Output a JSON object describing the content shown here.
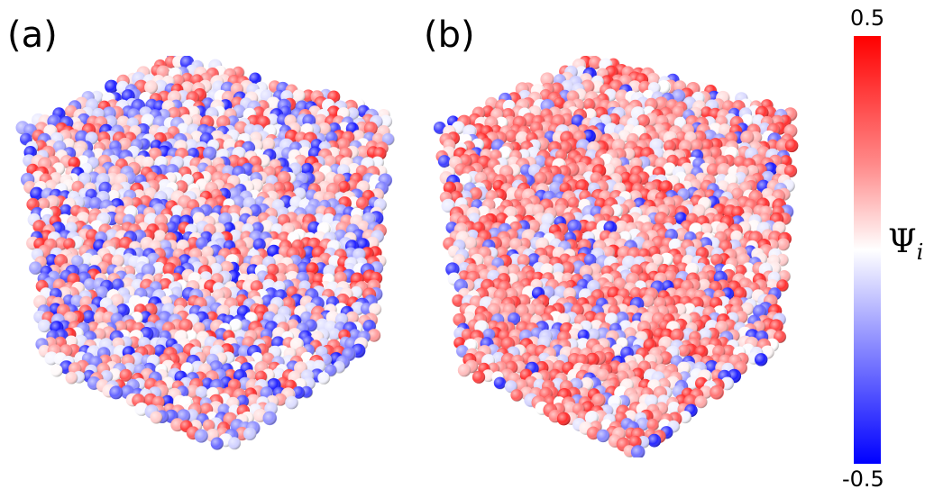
{
  "panels": [
    {
      "label": "(a)",
      "red_fraction": 0.32,
      "blue_fraction": 0.3
    },
    {
      "label": "(b)",
      "red_fraction": 0.62,
      "blue_fraction": 0.12
    }
  ],
  "colorbar": {
    "max_label": "0.5",
    "min_label": "-0.5",
    "symbol": "Ψ",
    "subscript": "i",
    "colors": {
      "max": "#ff0000",
      "mid": "#ffffff",
      "min": "#0000ff"
    }
  }
}
